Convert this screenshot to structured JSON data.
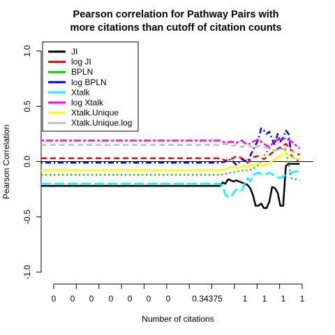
{
  "chart_data": {
    "type": "line",
    "title_line1": "Pearson correlation for Pathway Pairs with",
    "title_line2": "more citations than cutoff of citation counts",
    "xlabel": "Number of citations",
    "ylabel": "Pearson Correlation",
    "ylim": [
      -1.0,
      1.0
    ],
    "y_ticks": [
      "-1.0",
      "-0.5",
      "0.0",
      "0.5",
      "1.0"
    ],
    "x_tick_labels": [
      "0",
      "0",
      "0",
      "0",
      "0",
      "0",
      "0",
      "0.34375",
      "1",
      "1",
      "1",
      "1"
    ],
    "x_range": [
      1,
      100
    ],
    "legend_position": "top-left",
    "series": [
      {
        "name": "JI",
        "color": "#000000",
        "dash": "solid",
        "x": [
          1,
          66,
          67,
          68,
          69,
          70,
          71,
          72,
          73,
          74,
          75,
          76,
          77,
          78,
          79,
          80,
          81,
          82,
          83,
          84,
          85,
          86,
          87,
          88,
          89,
          90,
          91,
          92,
          93,
          94,
          95
        ],
        "y": [
          -0.22,
          -0.22,
          -0.19,
          -0.2,
          -0.16,
          -0.17,
          -0.18,
          -0.17,
          -0.18,
          -0.19,
          -0.2,
          -0.21,
          -0.24,
          -0.3,
          -0.4,
          -0.4,
          -0.38,
          -0.42,
          -0.42,
          -0.36,
          -0.23,
          -0.24,
          -0.28,
          -0.4,
          -0.4,
          -0.04,
          -0.02,
          -0.02,
          -0.02,
          -0.02,
          -0.02
        ]
      },
      {
        "name": "log JI",
        "color": "#ff0000",
        "dash": "dashed",
        "x": [
          1,
          66,
          68,
          70,
          72,
          74,
          76,
          78,
          80,
          82,
          84,
          86,
          88,
          90,
          92,
          95
        ],
        "y": [
          0.03,
          0.03,
          0.01,
          0.02,
          0.05,
          0.03,
          -0.01,
          0.04,
          0.05,
          0.02,
          0.06,
          0.1,
          0.13,
          0.16,
          0.1,
          0.06
        ]
      },
      {
        "name": "BPLN",
        "color": "#00cd00",
        "dash": "dotted",
        "x": [
          1,
          66,
          68,
          70,
          72,
          74,
          76,
          78,
          80,
          82,
          84,
          86,
          88,
          90,
          92,
          95
        ],
        "y": [
          -0.12,
          -0.12,
          -0.11,
          -0.1,
          -0.09,
          -0.08,
          -0.08,
          -0.07,
          -0.03,
          0.05,
          0.12,
          0.1,
          0.12,
          0.1,
          -0.15,
          -0.17
        ]
      },
      {
        "name": "log BPLN",
        "color": "#0000ff",
        "dash": "dashdot",
        "x": [
          1,
          66,
          68,
          70,
          72,
          74,
          76,
          78,
          80,
          81,
          82,
          83,
          84,
          85,
          86,
          87,
          88,
          89,
          90,
          91,
          92,
          93,
          95
        ],
        "y": [
          -0.01,
          -0.01,
          0.0,
          0.02,
          -0.03,
          0.02,
          0.0,
          0.1,
          0.2,
          0.3,
          0.28,
          0.25,
          0.27,
          0.2,
          0.15,
          0.25,
          0.18,
          0.22,
          0.28,
          0.25,
          0.05,
          0.03,
          0.0
        ]
      },
      {
        "name": "Xtalk",
        "color": "#00ffff",
        "dash": "longdash",
        "x": [
          1,
          66,
          67,
          68,
          69,
          70,
          71,
          72,
          73,
          74,
          75,
          76,
          77,
          78,
          80,
          82,
          84,
          86,
          88,
          90,
          92,
          95
        ],
        "y": [
          -0.2,
          -0.2,
          -0.22,
          -0.3,
          -0.32,
          -0.32,
          -0.28,
          -0.25,
          -0.27,
          -0.26,
          -0.2,
          -0.15,
          -0.18,
          -0.12,
          -0.1,
          -0.12,
          -0.1,
          -0.13,
          -0.15,
          -0.12,
          -0.1,
          -0.08
        ]
      },
      {
        "name": "log Xtalk",
        "color": "#ff00ff",
        "dash": "twodash",
        "x": [
          1,
          66,
          68,
          70,
          72,
          74,
          76,
          78,
          80,
          82,
          84,
          86,
          88,
          90,
          92,
          95
        ],
        "y": [
          0.19,
          0.19,
          0.17,
          0.18,
          0.17,
          0.19,
          0.15,
          0.18,
          0.2,
          0.16,
          0.13,
          0.19,
          0.2,
          0.21,
          0.18,
          0.12
        ]
      },
      {
        "name": "Xtalk.Unique",
        "color": "#ffff00",
        "dash": "solid",
        "x": [
          1,
          66,
          68,
          70,
          72,
          74,
          76,
          78,
          80,
          82,
          84,
          86,
          88,
          90,
          92,
          95
        ],
        "y": [
          -0.08,
          -0.08,
          -0.07,
          -0.05,
          -0.06,
          -0.04,
          -0.05,
          -0.03,
          -0.02,
          -0.04,
          -0.01,
          0.02,
          0.05,
          0.08,
          0.04,
          0.02
        ]
      },
      {
        "name": "Xtalk.Unique.log",
        "color": "#bebebe",
        "dash": "dashed",
        "x": [
          1,
          66,
          68,
          70,
          72,
          74,
          76,
          78,
          80,
          82,
          84,
          86,
          88,
          90,
          92,
          95
        ],
        "y": [
          0.15,
          0.15,
          0.16,
          0.14,
          0.15,
          0.13,
          0.16,
          0.12,
          0.14,
          0.13,
          0.12,
          0.1,
          0.11,
          0.12,
          0.09,
          0.08
        ]
      }
    ]
  }
}
